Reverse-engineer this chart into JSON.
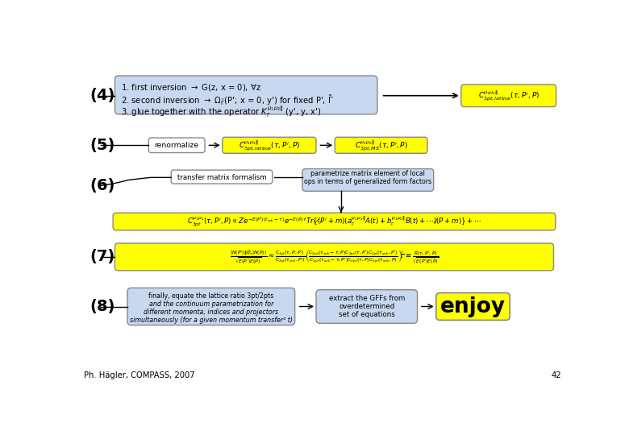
{
  "bg_color": "#ffffff",
  "yellow_bg": "#ffff00",
  "light_blue_bg": "#c8d8f0",
  "white_bg": "#ffffff",
  "edge_color": "#888888",
  "black": "#000000",
  "label_4": "(4)",
  "label_5": "(5)",
  "label_6": "(6)",
  "label_7": "(7)",
  "label_8": "(8)",
  "footer_text": "Ph. Hägler, COMPASS, 2007",
  "page_number": "42",
  "step5_renorm": "renormalize",
  "step6_transfer": "transfer matrix formalism",
  "step6_parametrize": "parametrize matrix element of local\nops in terms of generalized form factors",
  "step8_left": "finally, equate the lattice ratio 3pt/2pts\nand the continuum parametrization for\ndifferent momenta, indices and projectors\nsimultaneously (for a given momentum transfer² t)",
  "step8_middle": "extract the GFFs from\noverdetermined\nset of equations",
  "step8_enjoy": "enjoy"
}
